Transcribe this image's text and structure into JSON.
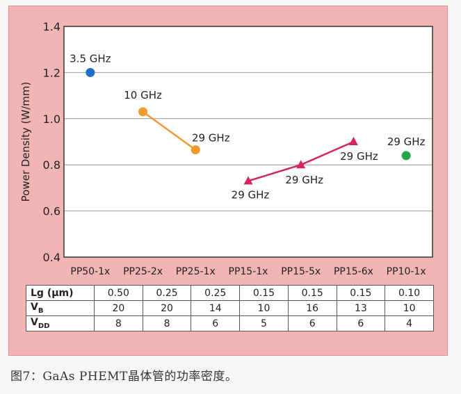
{
  "chart_data": {
    "type": "scatter",
    "ylabel": "Power Density (W/mm)",
    "ylim": [
      0.4,
      1.4
    ],
    "yticks": [
      "0.4",
      "0.6",
      "0.8",
      "1.0",
      "1.2",
      "1.4"
    ],
    "categories": [
      "PP50-1x",
      "PP25-2x",
      "PP25-1x",
      "PP15-1x",
      "PP15-5x",
      "PP15-6x",
      "PP10-1x"
    ],
    "grid": true,
    "series": [
      {
        "color": "#1f6fc5",
        "marker": "circle",
        "connected": false,
        "points": [
          {
            "category": "PP50-1x",
            "y": 1.2,
            "label": "3.5 GHz"
          }
        ]
      },
      {
        "color": "#f29a2e",
        "marker": "circle",
        "connected": true,
        "points": [
          {
            "category": "PP25-2x",
            "y": 1.03,
            "label": "10 GHz"
          },
          {
            "category": "PP25-1x",
            "y": 0.865,
            "label": "29 GHz"
          }
        ]
      },
      {
        "color": "#d6245f",
        "marker": "triangle",
        "connected": true,
        "points": [
          {
            "category": "PP15-1x",
            "y": 0.73,
            "label": "29 GHz"
          },
          {
            "category": "PP15-5x",
            "y": 0.8,
            "label": "29 GHz"
          },
          {
            "category": "PP15-6x",
            "y": 0.9,
            "label": "29 GHz"
          }
        ]
      },
      {
        "color": "#1ea84a",
        "marker": "circle",
        "connected": false,
        "points": [
          {
            "category": "PP10-1x",
            "y": 0.84,
            "label": "29 GHz"
          }
        ]
      }
    ]
  },
  "table": {
    "rows": [
      {
        "head": "Lg (μm)",
        "values": [
          "0.50",
          "0.25",
          "0.25",
          "0.15",
          "0.15",
          "0.15",
          "0.10"
        ]
      },
      {
        "head": "V",
        "sub": "B",
        "values": [
          "20",
          "20",
          "14",
          "10",
          "16",
          "13",
          "10"
        ]
      },
      {
        "head": "V",
        "sub": "DD",
        "values": [
          "8",
          "8",
          "6",
          "5",
          "6",
          "6",
          "4"
        ]
      }
    ]
  },
  "caption": "图7：GaAs PHEMT晶体管的功率密度。"
}
